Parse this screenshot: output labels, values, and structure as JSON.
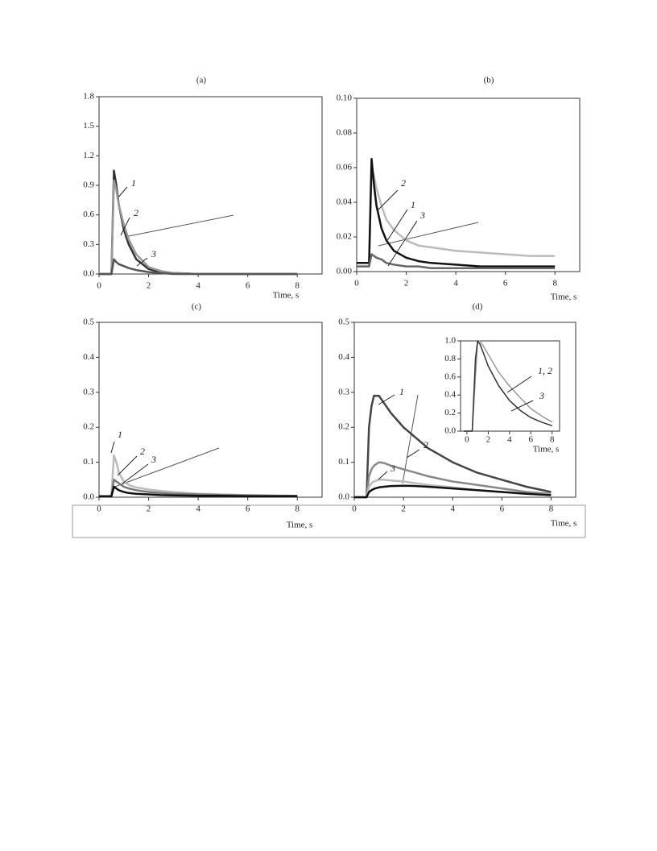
{
  "chart_data": [
    {
      "type": "line",
      "title": "(a)",
      "x_label": "Time, s",
      "xlim": [
        0,
        9
      ],
      "ylim": [
        0,
        1.8
      ],
      "xticks": [
        0,
        2,
        4,
        6,
        8
      ],
      "yticks": [
        {
          "value": 0,
          "label": "0.0"
        },
        0.3,
        0.6,
        0.9,
        1.2,
        1.5,
        1.8
      ],
      "x": [
        0,
        0.5,
        0.6,
        0.7,
        0.8,
        1,
        1.2,
        1.5,
        2,
        2.5,
        3,
        4,
        5,
        6,
        7,
        8
      ],
      "series": [
        {
          "name": "1",
          "color": "#333333",
          "values": [
            0,
            0,
            1.05,
            0.9,
            0.7,
            0.45,
            0.3,
            0.15,
            0.05,
            0.02,
            0.01,
            0,
            0,
            0,
            0,
            0
          ]
        },
        {
          "name": "2",
          "color": "#999999",
          "values": [
            0,
            0,
            0.95,
            0.85,
            0.7,
            0.5,
            0.35,
            0.2,
            0.07,
            0.03,
            0.01,
            0,
            0,
            0,
            0,
            0
          ]
        },
        {
          "name": "3",
          "color": "#555555",
          "values": [
            0,
            0,
            0.15,
            0.12,
            0.1,
            0.08,
            0.06,
            0.04,
            0.02,
            0.01,
            0,
            0,
            0,
            0,
            0,
            0
          ]
        }
      ]
    },
    {
      "type": "line",
      "title": "(b)",
      "x_label": "Time, s",
      "xlim": [
        0,
        9
      ],
      "ylim": [
        0,
        0.1
      ],
      "xticks": [
        0,
        2,
        4,
        6,
        8
      ],
      "yticks": [
        {
          "value": 0,
          "label": "0.00"
        },
        0.02,
        0.04,
        0.06,
        0.08,
        {
          "value": 0.1,
          "label": "0.10"
        }
      ],
      "x": [
        0,
        0.5,
        0.6,
        0.7,
        0.8,
        1,
        1.2,
        1.5,
        2,
        2.5,
        3,
        4,
        5,
        6,
        7,
        8
      ],
      "series": [
        {
          "name": "2",
          "color": "#bbbbbb",
          "values": [
            0.003,
            0.003,
            0.06,
            0.055,
            0.048,
            0.038,
            0.03,
            0.024,
            0.018,
            0.015,
            0.014,
            0.012,
            0.011,
            0.01,
            0.009,
            0.009
          ]
        },
        {
          "name": "1",
          "color": "#111111",
          "values": [
            0.005,
            0.005,
            0.065,
            0.05,
            0.038,
            0.025,
            0.018,
            0.012,
            0.008,
            0.006,
            0.005,
            0.004,
            0.003,
            0.003,
            0.003,
            0.003
          ]
        },
        {
          "name": "3",
          "color": "#666666",
          "values": [
            0.003,
            0.003,
            0.01,
            0.009,
            0.008,
            0.007,
            0.005,
            0.004,
            0.003,
            0.003,
            0.002,
            0.002,
            0.002,
            0.002,
            0.002,
            0.002
          ]
        }
      ]
    },
    {
      "type": "line",
      "title": "(c)",
      "x_label": "Time, s",
      "xlim": [
        0,
        9
      ],
      "ylim": [
        0,
        0.5
      ],
      "xticks": [
        0,
        2,
        4,
        6,
        8
      ],
      "yticks": [
        {
          "value": 0,
          "label": "0.0"
        },
        0.1,
        0.2,
        0.3,
        0.4,
        0.5
      ],
      "x": [
        0,
        0.5,
        0.6,
        0.7,
        0.8,
        1,
        1.2,
        1.5,
        2,
        2.5,
        3,
        4,
        5,
        6,
        7,
        8
      ],
      "series": [
        {
          "name": "1",
          "color": "#bbbbbb",
          "values": [
            0.003,
            0.003,
            0.12,
            0.1,
            0.07,
            0.045,
            0.035,
            0.028,
            0.022,
            0.018,
            0.015,
            0.01,
            0.008,
            0.006,
            0.005,
            0.004
          ]
        },
        {
          "name": "2",
          "color": "#777777",
          "values": [
            0.003,
            0.003,
            0.05,
            0.045,
            0.04,
            0.03,
            0.025,
            0.02,
            0.015,
            0.012,
            0.01,
            0.008,
            0.006,
            0.005,
            0.004,
            0.004
          ]
        },
        {
          "name": "3",
          "color": "#111111",
          "values": [
            0.003,
            0.003,
            0.03,
            0.025,
            0.02,
            0.015,
            0.012,
            0.01,
            0.008,
            0.006,
            0.005,
            0.004,
            0.004,
            0.003,
            0.003,
            0.003
          ]
        }
      ]
    },
    {
      "type": "line",
      "title": "(d)",
      "x_label": "Time, s",
      "xlim": [
        0,
        9
      ],
      "ylim": [
        0,
        0.5
      ],
      "xticks": [
        0,
        2,
        4,
        6,
        8
      ],
      "yticks": [
        {
          "value": 0,
          "label": "0.0"
        },
        0.1,
        0.2,
        0.3,
        0.4,
        0.5
      ],
      "x": [
        0,
        0.5,
        0.6,
        0.7,
        0.8,
        1,
        1.2,
        1.5,
        2,
        2.5,
        3,
        4,
        5,
        6,
        7,
        8
      ],
      "series": [
        {
          "name": "1",
          "color": "#444444",
          "values": [
            0,
            0,
            0.2,
            0.26,
            0.29,
            0.29,
            0.27,
            0.24,
            0.2,
            0.17,
            0.14,
            0.1,
            0.07,
            0.05,
            0.03,
            0.015
          ]
        },
        {
          "name": "2",
          "color": "#888888",
          "values": [
            0,
            0,
            0.06,
            0.08,
            0.09,
            0.1,
            0.098,
            0.09,
            0.08,
            0.07,
            0.06,
            0.045,
            0.035,
            0.025,
            0.015,
            0.01
          ]
        },
        {
          "name": "3",
          "color": "#bbbbbb",
          "values": [
            0,
            0,
            0.03,
            0.04,
            0.045,
            0.05,
            0.05,
            0.048,
            0.045,
            0.04,
            0.035,
            0.028,
            0.02,
            0.015,
            0.01,
            0.008
          ]
        },
        {
          "color": "#111111",
          "values": [
            0,
            0,
            0.015,
            0.02,
            0.024,
            0.028,
            0.03,
            0.032,
            0.033,
            0.032,
            0.03,
            0.025,
            0.02,
            0.015,
            0.01,
            0.006
          ]
        }
      ]
    },
    {
      "type": "line",
      "x_label": "Time, s",
      "xlim": [
        -0.6,
        8.7
      ],
      "ylim": [
        0,
        1
      ],
      "xticks": [
        0,
        2,
        4,
        6,
        8
      ],
      "yticks": [
        {
          "value": 0,
          "label": "0.0"
        },
        0.2,
        0.4,
        0.6,
        0.8,
        {
          "value": 1,
          "label": "1.0"
        }
      ],
      "x": [
        -0.3,
        0.5,
        0.8,
        1,
        1.2,
        1.5,
        2,
        3,
        4,
        5,
        6,
        7,
        8
      ],
      "series": [
        {
          "name": "1, 2",
          "color": "#999999",
          "values": [
            0,
            0,
            0.6,
            1.0,
            1.0,
            0.95,
            0.85,
            0.65,
            0.5,
            0.37,
            0.25,
            0.17,
            0.1
          ]
        },
        {
          "name": "3",
          "color": "#333333",
          "values": [
            0,
            0,
            0.8,
            1.0,
            0.97,
            0.88,
            0.72,
            0.5,
            0.34,
            0.23,
            0.15,
            0.1,
            0.06
          ]
        }
      ]
    }
  ]
}
